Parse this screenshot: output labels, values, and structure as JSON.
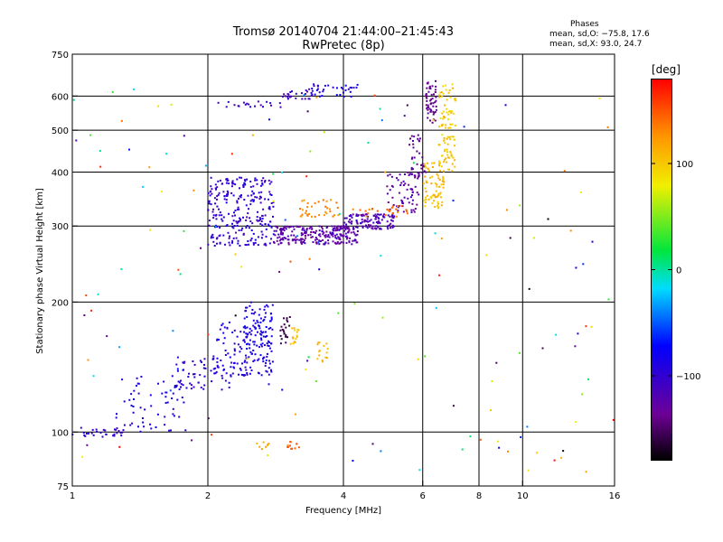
{
  "header": {
    "title_line1": "Tromsø 20140704 21:44:00–21:45:43",
    "title_line2": "RwPretec (8p)",
    "phases_label": "Phases",
    "stat_o": "mean, sd,O: −75.8, 17.6",
    "stat_x": "mean, sd,X:  93.0, 24.7"
  },
  "colorbar": {
    "title": "[deg]",
    "min": -180,
    "max": 180,
    "ticks": [
      {
        "v": 100,
        "label": "100"
      },
      {
        "v": 0,
        "label": "0"
      },
      {
        "v": -100,
        "label": "−100"
      }
    ]
  },
  "chart_data": {
    "type": "scatter",
    "xlabel": "Frequency [MHz]",
    "ylabel": "Stationary phase Virtual Height [km]",
    "xscale": "log",
    "yscale": "log",
    "xlim": [
      1,
      16
    ],
    "ylim": [
      75,
      750
    ],
    "grid": true,
    "x_ticks": [
      {
        "v": 1,
        "label": "1"
      },
      {
        "v": 2,
        "label": "2"
      },
      {
        "v": 4,
        "label": "4"
      },
      {
        "v": 6,
        "label": "6"
      },
      {
        "v": 8,
        "label": "8"
      },
      {
        "v": 10,
        "label": "10"
      },
      {
        "v": 16,
        "label": "16"
      }
    ],
    "x_grid": [
      2,
      4,
      6,
      8,
      10
    ],
    "y_ticks": [
      {
        "v": 75,
        "label": "75"
      },
      {
        "v": 100,
        "label": "100"
      },
      {
        "v": 200,
        "label": "200"
      },
      {
        "v": 300,
        "label": "300"
      },
      {
        "v": 400,
        "label": "400"
      },
      {
        "v": 500,
        "label": "500"
      },
      {
        "v": 600,
        "label": "600"
      },
      {
        "v": 750,
        "label": "750"
      }
    ],
    "y_grid": [
      100,
      200,
      300,
      400,
      500,
      600
    ],
    "color_axis": "phase [deg]",
    "clusters": [
      {
        "x": [
          1.0,
          1.3
        ],
        "y": [
          97,
          103
        ],
        "n": 30,
        "phase": [
          -110,
          -90
        ]
      },
      {
        "x": [
          1.25,
          1.8
        ],
        "y": [
          100,
          135
        ],
        "n": 60,
        "phase": [
          -100,
          -80
        ]
      },
      {
        "x": [
          1.7,
          2.3
        ],
        "y": [
          125,
          150
        ],
        "n": 70,
        "phase": [
          -110,
          -80
        ]
      },
      {
        "x": [
          2.05,
          2.45
        ],
        "y": [
          135,
          180
        ],
        "n": 50,
        "phase": [
          -100,
          -80
        ]
      },
      {
        "x": [
          2.4,
          2.8
        ],
        "y": [
          135,
          200
        ],
        "n": 140,
        "phase": [
          -100,
          -75
        ]
      },
      {
        "x": [
          2.0,
          2.8
        ],
        "y": [
          270,
          390
        ],
        "n": 260,
        "phase": [
          -115,
          -85
        ]
      },
      {
        "x": [
          2.8,
          4.3
        ],
        "y": [
          272,
          300
        ],
        "n": 240,
        "phase": [
          -140,
          -110
        ]
      },
      {
        "x": [
          4.0,
          5.2
        ],
        "y": [
          295,
          320
        ],
        "n": 110,
        "phase": [
          -130,
          -105
        ]
      },
      {
        "x": [
          5.0,
          5.9
        ],
        "y": [
          320,
          400
        ],
        "n": 60,
        "phase": [
          -140,
          -110
        ]
      },
      {
        "x": [
          5.6,
          6.1
        ],
        "y": [
          380,
          490
        ],
        "n": 40,
        "phase": [
          -150,
          -120
        ]
      },
      {
        "x": [
          6.1,
          6.45
        ],
        "y": [
          520,
          650
        ],
        "n": 55,
        "phase": [
          -150,
          -125
        ]
      },
      {
        "x": [
          6.0,
          6.7
        ],
        "y": [
          330,
          420
        ],
        "n": 70,
        "phase": [
          90,
          120
        ]
      },
      {
        "x": [
          6.5,
          7.1
        ],
        "y": [
          400,
          640
        ],
        "n": 90,
        "phase": [
          85,
          115
        ]
      },
      {
        "x": [
          3.2,
          3.9
        ],
        "y": [
          315,
          345
        ],
        "n": 35,
        "phase": [
          120,
          145
        ]
      },
      {
        "x": [
          4.2,
          5.6
        ],
        "y": [
          315,
          335
        ],
        "n": 25,
        "phase": [
          125,
          150
        ]
      },
      {
        "x": [
          2.1,
          3.0
        ],
        "y": [
          565,
          585
        ],
        "n": 20,
        "phase": [
          -120,
          -95
        ]
      },
      {
        "x": [
          2.9,
          3.4
        ],
        "y": [
          590,
          625
        ],
        "n": 25,
        "phase": [
          -120,
          -100
        ]
      },
      {
        "x": [
          3.4,
          4.3
        ],
        "y": [
          595,
          640
        ],
        "n": 35,
        "phase": [
          -110,
          -70
        ]
      },
      {
        "x": [
          2.9,
          3.05
        ],
        "y": [
          160,
          185
        ],
        "n": 22,
        "phase": [
          -165,
          -150
        ]
      },
      {
        "x": [
          3.05,
          3.2
        ],
        "y": [
          160,
          175
        ],
        "n": 15,
        "phase": [
          95,
          115
        ]
      },
      {
        "x": [
          3.5,
          3.7
        ],
        "y": [
          145,
          165
        ],
        "n": 15,
        "phase": [
          100,
          120
        ]
      },
      {
        "x": [
          2.55,
          2.75
        ],
        "y": [
          91,
          95
        ],
        "n": 8,
        "phase": [
          110,
          130
        ]
      },
      {
        "x": [
          3.0,
          3.2
        ],
        "y": [
          91,
          95
        ],
        "n": 10,
        "phase": [
          135,
          160
        ]
      },
      {
        "x": [
          1.0,
          16.0
        ],
        "y": [
          80,
          650
        ],
        "n": 150,
        "phase": [
          -180,
          180
        ]
      }
    ]
  }
}
